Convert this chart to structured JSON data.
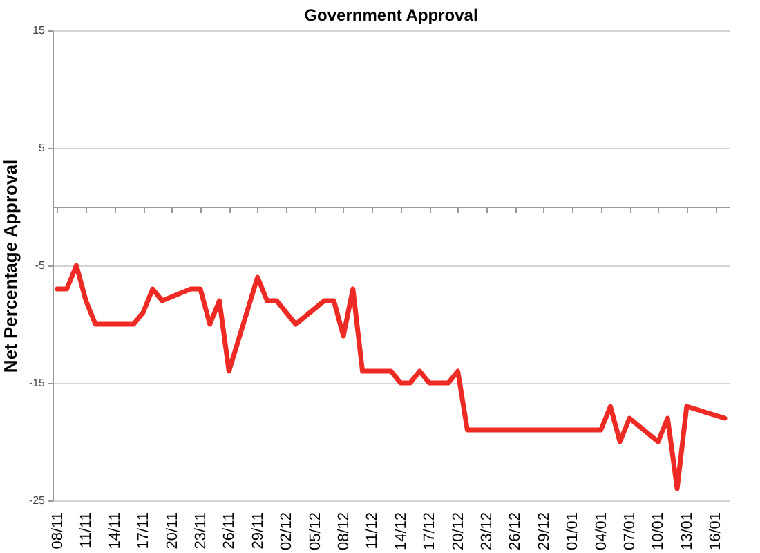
{
  "chart_data": {
    "type": "line",
    "title": "Government Approval",
    "ylabel": "Net Percentage Approval",
    "categories": [
      "08/11",
      null,
      null,
      "11/11",
      null,
      null,
      "14/11",
      null,
      null,
      "17/11",
      null,
      null,
      "20/11",
      null,
      null,
      "23/11",
      null,
      null,
      "26/11",
      null,
      null,
      "29/11",
      null,
      null,
      "02/12",
      null,
      null,
      "05/12",
      null,
      null,
      "08/12",
      null,
      null,
      "11/12",
      null,
      null,
      "14/12",
      null,
      null,
      "17/12",
      null,
      null,
      "20/12",
      null,
      null,
      "23/12",
      null,
      null,
      "26/12",
      null,
      null,
      "29/12",
      null,
      null,
      "01/01",
      null,
      null,
      "04/01",
      null,
      null,
      "07/01",
      null,
      null,
      "10/01",
      null,
      null,
      "13/01",
      null,
      null,
      "16/01",
      null
    ],
    "series": [
      {
        "color": "#ee2a24",
        "values": [
          -7,
          -7,
          -5,
          -8,
          -10,
          null,
          null,
          null,
          -10,
          -9,
          -7,
          -8,
          null,
          null,
          -7,
          -7,
          -10,
          -8,
          -14,
          null,
          null,
          -6,
          -8,
          -8,
          null,
          -10,
          null,
          null,
          -8,
          -8,
          -11,
          -7,
          -14,
          null,
          null,
          -14,
          -15,
          -15,
          -14,
          -15,
          null,
          -15,
          -14,
          -19,
          null,
          null,
          null,
          null,
          null,
          null,
          null,
          null,
          null,
          null,
          null,
          null,
          null,
          -19,
          -17,
          -20,
          -18,
          null,
          null,
          -20,
          -18,
          -24,
          -17,
          null,
          null,
          null,
          -18
        ]
      }
    ],
    "ylim": [
      -25,
      15
    ],
    "yticks": [
      -25,
      -15,
      -5,
      5,
      15
    ],
    "grid": "y",
    "marker": "none",
    "line_style": "solid"
  }
}
